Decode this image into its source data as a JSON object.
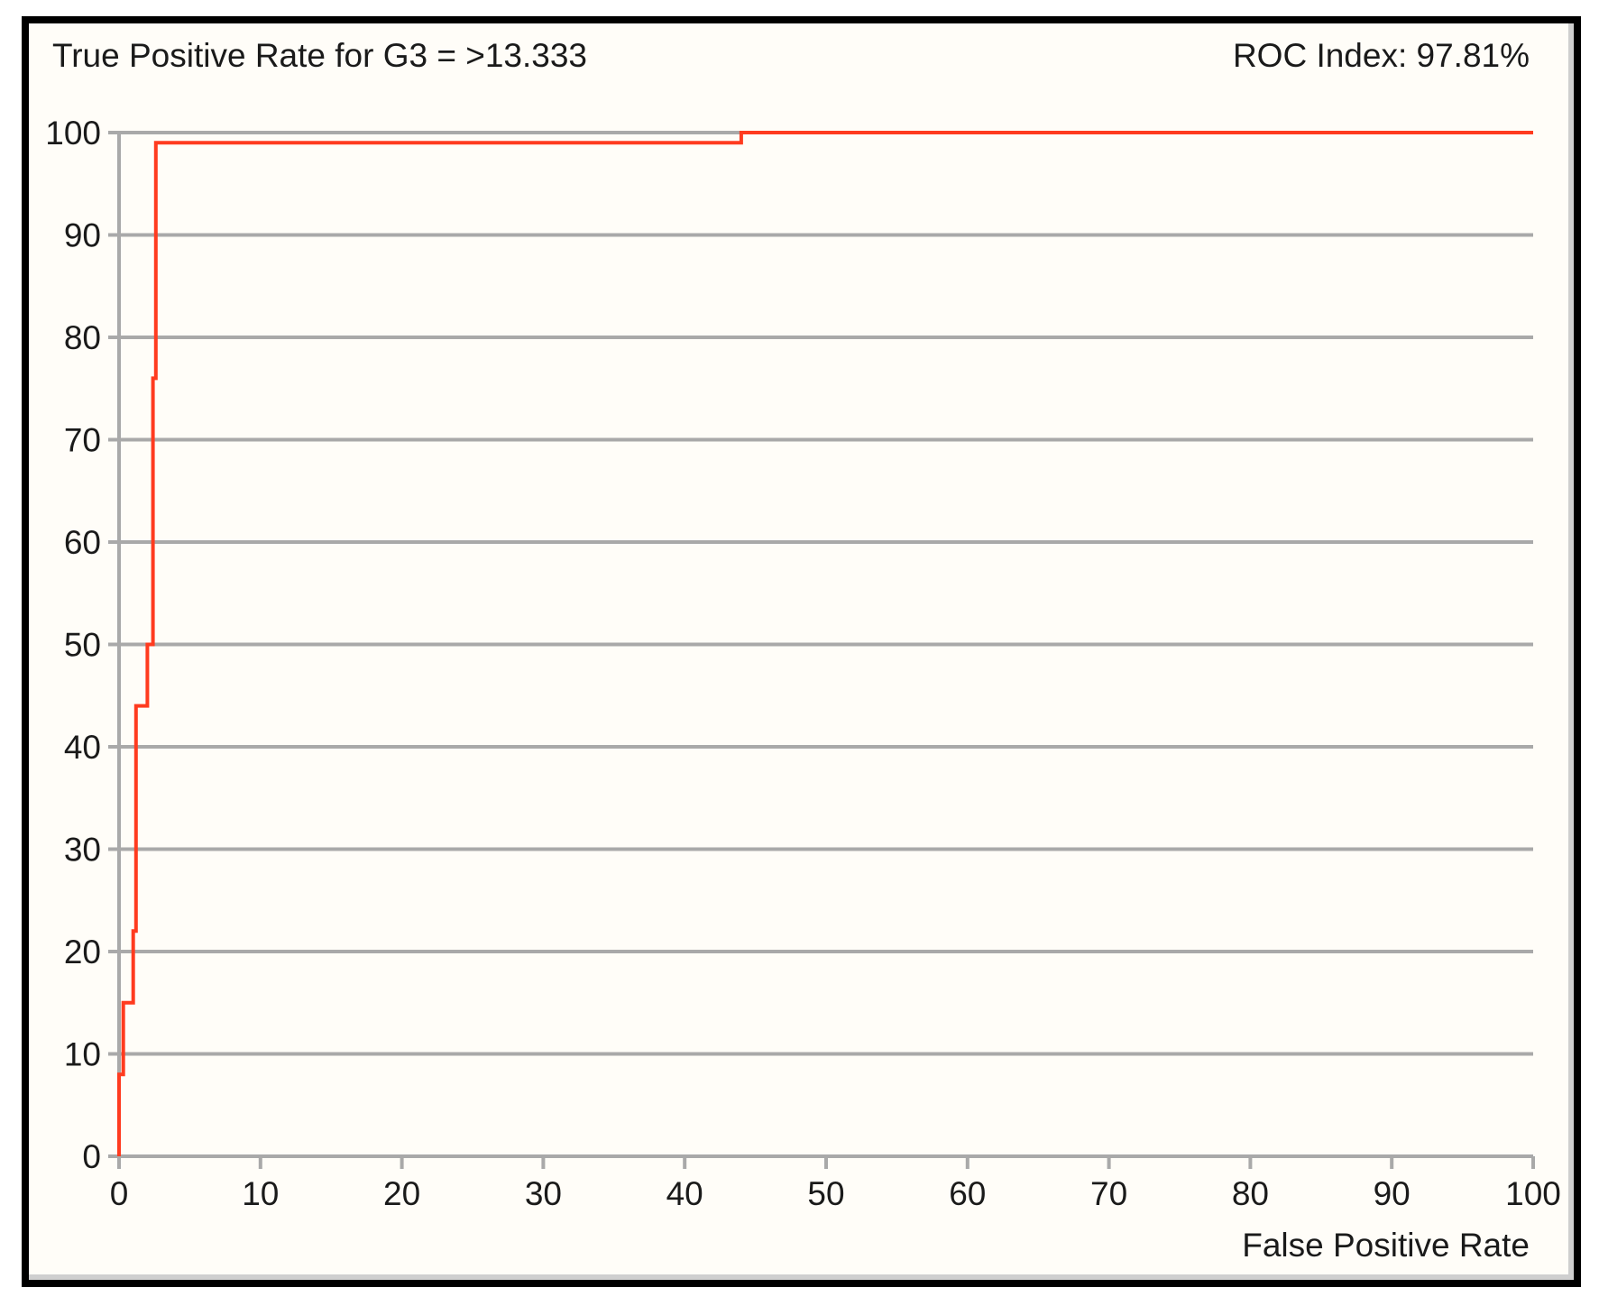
{
  "chart_data": {
    "type": "line",
    "title": "True Positive Rate for G3 = >13.333",
    "annotation": "ROC Index: 97.81%",
    "xlabel": "False Positive Rate",
    "ylabel": "",
    "xlim": [
      0,
      100
    ],
    "ylim": [
      0,
      100
    ],
    "x_ticks": [
      "0",
      "10",
      "20",
      "30",
      "40",
      "50",
      "60",
      "70",
      "80",
      "90",
      "100"
    ],
    "y_ticks": [
      "0",
      "10",
      "20",
      "30",
      "40",
      "50",
      "60",
      "70",
      "80",
      "90",
      "100"
    ],
    "grid": "horizontal",
    "line_color": "#ff3b1f",
    "series": [
      {
        "step_points": [
          [
            0,
            0
          ],
          [
            0,
            8
          ],
          [
            0.3,
            8
          ],
          [
            0.3,
            15
          ],
          [
            1.0,
            15
          ],
          [
            1.0,
            22
          ],
          [
            1.2,
            22
          ],
          [
            1.2,
            44
          ],
          [
            2.0,
            44
          ],
          [
            2.0,
            50
          ],
          [
            2.4,
            50
          ],
          [
            2.4,
            76
          ],
          [
            2.6,
            76
          ],
          [
            2.6,
            99
          ],
          [
            44,
            99
          ],
          [
            44,
            100
          ],
          [
            100,
            100
          ]
        ]
      }
    ]
  }
}
